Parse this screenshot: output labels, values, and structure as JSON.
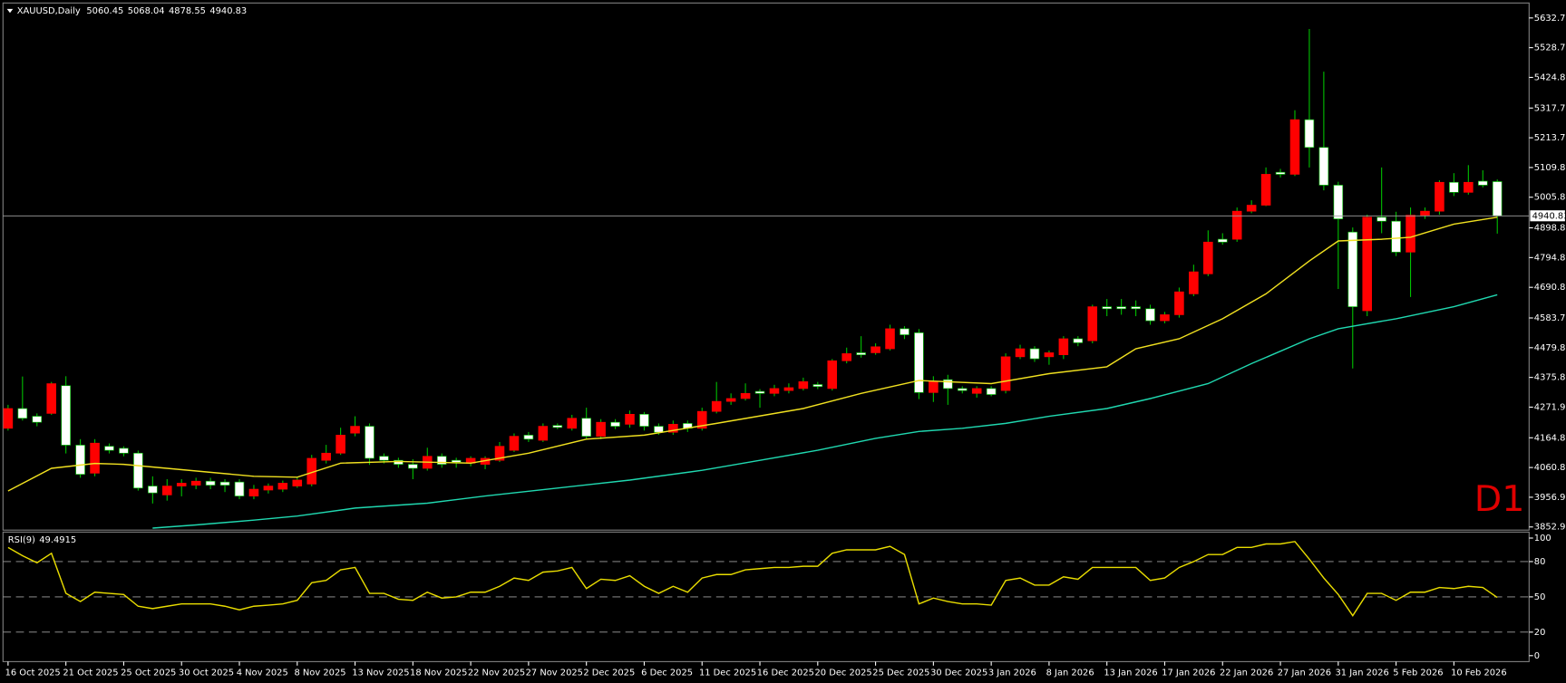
{
  "chart_data": [
    {
      "type": "candlestick",
      "title": "XAUUSD,Daily",
      "ohlc": [
        [
          4198,
          4280,
          4190,
          4267
        ],
        [
          4267,
          4379,
          4225,
          4233
        ],
        [
          4240,
          4250,
          4205,
          4219
        ],
        [
          4250,
          4360,
          4245,
          4354
        ],
        [
          4347,
          4380,
          4110,
          4139
        ],
        [
          4139,
          4160,
          4025,
          4037
        ],
        [
          4041,
          4160,
          4030,
          4146
        ],
        [
          4135,
          4145,
          4110,
          4121
        ],
        [
          4128,
          4135,
          4100,
          4111
        ],
        [
          4111,
          4120,
          3980,
          3989
        ],
        [
          3996,
          4030,
          3935,
          3972
        ],
        [
          3965,
          4020,
          3945,
          3996
        ],
        [
          3996,
          4020,
          3960,
          4006
        ],
        [
          3999,
          4025,
          3985,
          4013
        ],
        [
          4013,
          4025,
          3985,
          3999
        ],
        [
          4010,
          4020,
          3975,
          3999
        ],
        [
          4010,
          4020,
          3950,
          3961
        ],
        [
          3961,
          4000,
          3950,
          3985
        ],
        [
          3982,
          4005,
          3970,
          3996
        ],
        [
          3985,
          4015,
          3975,
          4006
        ],
        [
          3996,
          4025,
          3990,
          4017
        ],
        [
          4003,
          4105,
          3995,
          4093
        ],
        [
          4086,
          4140,
          4075,
          4111
        ],
        [
          4111,
          4200,
          4105,
          4174
        ],
        [
          4181,
          4240,
          4170,
          4205
        ],
        [
          4205,
          4215,
          4070,
          4093
        ],
        [
          4100,
          4110,
          4075,
          4086
        ],
        [
          4086,
          4095,
          4060,
          4072
        ],
        [
          4072,
          4090,
          4020,
          4058
        ],
        [
          4058,
          4130,
          4050,
          4100
        ],
        [
          4100,
          4110,
          4060,
          4072
        ],
        [
          4086,
          4095,
          4060,
          4079
        ],
        [
          4076,
          4100,
          4065,
          4093
        ],
        [
          4072,
          4100,
          4055,
          4093
        ],
        [
          4086,
          4150,
          4080,
          4135
        ],
        [
          4121,
          4180,
          4115,
          4170
        ],
        [
          4174,
          4185,
          4150,
          4160
        ],
        [
          4156,
          4215,
          4150,
          4205
        ],
        [
          4208,
          4215,
          4195,
          4201
        ],
        [
          4198,
          4245,
          4190,
          4233
        ],
        [
          4233,
          4270,
          4160,
          4170
        ],
        [
          4170,
          4230,
          4160,
          4219
        ],
        [
          4219,
          4230,
          4195,
          4205
        ],
        [
          4212,
          4260,
          4200,
          4247
        ],
        [
          4247,
          4255,
          4190,
          4205
        ],
        [
          4205,
          4215,
          4175,
          4184
        ],
        [
          4184,
          4225,
          4175,
          4212
        ],
        [
          4215,
          4225,
          4185,
          4198
        ],
        [
          4198,
          4270,
          4190,
          4257
        ],
        [
          4257,
          4360,
          4250,
          4292
        ],
        [
          4292,
          4320,
          4280,
          4302
        ],
        [
          4302,
          4355,
          4295,
          4320
        ],
        [
          4327,
          4335,
          4270,
          4320
        ],
        [
          4320,
          4350,
          4310,
          4337
        ],
        [
          4330,
          4355,
          4320,
          4340
        ],
        [
          4337,
          4375,
          4330,
          4361
        ],
        [
          4351,
          4360,
          4335,
          4344
        ],
        [
          4337,
          4440,
          4330,
          4434
        ],
        [
          4434,
          4480,
          4425,
          4459
        ],
        [
          4462,
          4520,
          4445,
          4455
        ],
        [
          4462,
          4495,
          4455,
          4483
        ],
        [
          4476,
          4560,
          4470,
          4546
        ],
        [
          4546,
          4555,
          4510,
          4525
        ],
        [
          4532,
          4545,
          4300,
          4323
        ],
        [
          4323,
          4380,
          4290,
          4361
        ],
        [
          4368,
          4385,
          4280,
          4337
        ],
        [
          4337,
          4345,
          4320,
          4330
        ],
        [
          4320,
          4345,
          4305,
          4337
        ],
        [
          4337,
          4345,
          4310,
          4316
        ],
        [
          4330,
          4460,
          4320,
          4448
        ],
        [
          4448,
          4490,
          4440,
          4476
        ],
        [
          4476,
          4485,
          4430,
          4441
        ],
        [
          4448,
          4470,
          4420,
          4462
        ],
        [
          4455,
          4520,
          4440,
          4511
        ],
        [
          4511,
          4520,
          4485,
          4497
        ],
        [
          4504,
          4630,
          4495,
          4623
        ],
        [
          4623,
          4650,
          4590,
          4616
        ],
        [
          4623,
          4650,
          4595,
          4616
        ],
        [
          4623,
          4645,
          4590,
          4616
        ],
        [
          4616,
          4630,
          4560,
          4574
        ],
        [
          4574,
          4605,
          4565,
          4595
        ],
        [
          4595,
          4690,
          4585,
          4675
        ],
        [
          4668,
          4770,
          4660,
          4745
        ],
        [
          4738,
          4890,
          4730,
          4849
        ],
        [
          4859,
          4880,
          4840,
          4849
        ],
        [
          4859,
          4970,
          4850,
          4957
        ],
        [
          4957,
          4995,
          4950,
          4978
        ],
        [
          4978,
          5110,
          4975,
          5086
        ],
        [
          5093,
          5105,
          5075,
          5086
        ],
        [
          5086,
          5310,
          5080,
          5277
        ],
        [
          5277,
          5594,
          5110,
          5180
        ],
        [
          5180,
          5445,
          5030,
          5048
        ],
        [
          5048,
          5060,
          4685,
          4930
        ],
        [
          4884,
          4900,
          4407,
          4623
        ],
        [
          4609,
          4945,
          4590,
          4936
        ],
        [
          4936,
          5110,
          4880,
          4922
        ],
        [
          4922,
          4955,
          4800,
          4814
        ],
        [
          4814,
          4970,
          4657,
          4943
        ],
        [
          4943,
          4970,
          4930,
          4957
        ],
        [
          4957,
          5065,
          4945,
          5058
        ],
        [
          5058,
          5090,
          5010,
          5023
        ],
        [
          5023,
          5118,
          5015,
          5058
        ],
        [
          5062,
          5100,
          5040,
          5048
        ],
        [
          5060.45,
          5068.04,
          4878.55,
          4940.83
        ]
      ],
      "up_color": "#ff0000",
      "down_color": "#ffffff",
      "wick_color": "#00c000",
      "overlays": [
        {
          "color": "#f0e020",
          "x": [
            0,
            3,
            6,
            8,
            17,
            20,
            23,
            27,
            32,
            36,
            40,
            44,
            49,
            55,
            59,
            63,
            68,
            72,
            76,
            78,
            81,
            84,
            87,
            90,
            92,
            95,
            97,
            100,
            103
          ],
          "values": [
            3979,
            4058,
            4075,
            4072,
            4030,
            4027,
            4076,
            4082,
            4076,
            4111,
            4160,
            4174,
            4215,
            4267,
            4320,
            4365,
            4354,
            4389,
            4413,
            4476,
            4511,
            4581,
            4668,
            4783,
            4853,
            4859,
            4866,
            4912,
            4936
          ]
        },
        {
          "color": "#20d8b0",
          "x": [
            10,
            13,
            17,
            20,
            24,
            29,
            33,
            38,
            43,
            48,
            52,
            56,
            60,
            63,
            66,
            69,
            72,
            76,
            79,
            83,
            86,
            90,
            92,
            96,
            100,
            103
          ],
          "values": [
            3849,
            3860,
            3877,
            3891,
            3919,
            3936,
            3961,
            3989,
            4017,
            4051,
            4086,
            4121,
            4163,
            4187,
            4198,
            4215,
            4240,
            4267,
            4302,
            4354,
            4424,
            4511,
            4546,
            4581,
            4623,
            4665
          ]
        }
      ],
      "xlim": [
        -0.35,
        105.2
      ],
      "xticks": [
        {
          "value": 0,
          "label": "16 Oct 2025"
        },
        {
          "value": 4,
          "label": "21 Oct 2025"
        },
        {
          "value": 8,
          "label": "25 Oct 2025"
        },
        {
          "value": 12,
          "label": "30 Oct 2025"
        },
        {
          "value": 16,
          "label": "4 Nov 2025"
        },
        {
          "value": 20,
          "label": "8 Nov 2025"
        },
        {
          "value": 24,
          "label": "13 Nov 2025"
        },
        {
          "value": 28,
          "label": "18 Nov 2025"
        },
        {
          "value": 32,
          "label": "22 Nov 2025"
        },
        {
          "value": 36,
          "label": "27 Nov 2025"
        },
        {
          "value": 40,
          "label": "2 Dec 2025"
        },
        {
          "value": 44,
          "label": "6 Dec 2025"
        },
        {
          "value": 48,
          "label": "11 Dec 2025"
        },
        {
          "value": 52,
          "label": "16 Dec 2025"
        },
        {
          "value": 56,
          "label": "20 Dec 2025"
        },
        {
          "value": 60,
          "label": "25 Dec 2025"
        },
        {
          "value": 64,
          "label": "30 Dec 2025"
        },
        {
          "value": 68,
          "label": "3 Jan 2026"
        },
        {
          "value": 72,
          "label": "8 Jan 2026"
        },
        {
          "value": 76,
          "label": "13 Jan 2026"
        },
        {
          "value": 80,
          "label": "17 Jan 2026"
        },
        {
          "value": 84,
          "label": "22 Jan 2026"
        },
        {
          "value": 88,
          "label": "27 Jan 2026"
        },
        {
          "value": 92,
          "label": "31 Jan 2026"
        },
        {
          "value": 96,
          "label": "5 Feb 2026"
        },
        {
          "value": 100,
          "label": "10 Feb 2026"
        }
      ],
      "ylim": [
        3842,
        5678
      ],
      "yticks": [
        {
          "value": 5632.7,
          "label": "5632.70"
        },
        5528.75,
        {
          "value": 5424.8,
          "label": "5424.80"
        },
        {
          "value": 5317.7,
          "label": "5317.70"
        },
        5213.75,
        {
          "value": 5109.8,
          "label": "5109.80"
        },
        5005.85,
        {
          "value": 4898.8,
          "label": "4898.80"
        },
        {
          "value": 4794.8,
          "label": "4794.80"
        },
        4690.85,
        4583.75,
        {
          "value": 4479.8,
          "label": "4479.80"
        },
        4375.85,
        {
          "value": 4271.9,
          "label": "4271.90"
        },
        {
          "value": 4164.8,
          "label": "4164.80"
        },
        4060.85,
        {
          "value": 3956.9,
          "label": "3956.90"
        },
        3852.95
      ],
      "annotation": "D1",
      "annotation_color": "#e00000",
      "last_price_color": "#a0a0a0"
    },
    {
      "type": "line",
      "series": [
        {
          "name": "RSI(9)",
          "color": "#e8dc00",
          "values": [
            92,
            85,
            79,
            87,
            53,
            46,
            54,
            53,
            52,
            42,
            40,
            42,
            44,
            44,
            44,
            42,
            39,
            42,
            43,
            44,
            47,
            62,
            64,
            73,
            75,
            53,
            53,
            48,
            47,
            54,
            49,
            50,
            54,
            54,
            59,
            66,
            64,
            71,
            72,
            75,
            57,
            65,
            64,
            68,
            59,
            53,
            59,
            54,
            66,
            69,
            69,
            73,
            74,
            75,
            75,
            76,
            76,
            87,
            90,
            90,
            90,
            93,
            86,
            44,
            49,
            46,
            44,
            44,
            43,
            64,
            66,
            60,
            60,
            67,
            65,
            75,
            75,
            75,
            75,
            64,
            66,
            75,
            80,
            86,
            86,
            92,
            92,
            95,
            95,
            97,
            82,
            66,
            52,
            34,
            53,
            53,
            47,
            54,
            54,
            58,
            57,
            59,
            58,
            49.4915
          ]
        }
      ],
      "ylim": [
        0,
        100
      ],
      "yticks": [
        0,
        20,
        50,
        80,
        100
      ],
      "levels": [
        20,
        50,
        80
      ]
    }
  ]
}
